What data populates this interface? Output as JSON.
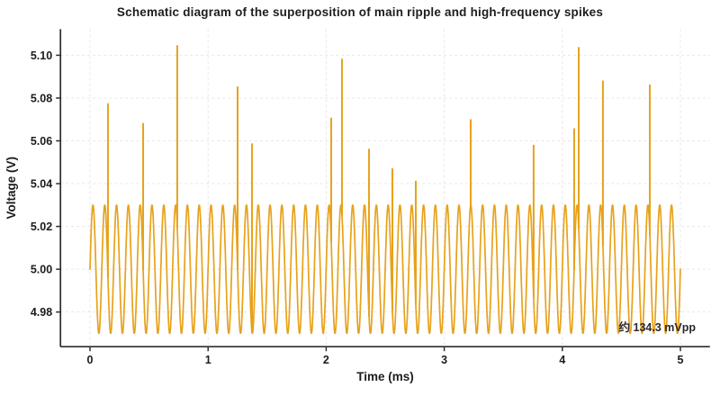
{
  "chart_data": {
    "type": "line",
    "title": "Schematic diagram of the superposition of main ripple and high-frequency spikes",
    "xlabel": "Time (ms)",
    "ylabel": "Voltage (V)",
    "xlim": [
      -0.25,
      5.25
    ],
    "ylim": [
      4.9638,
      5.1122
    ],
    "x_ticks": [
      0,
      1,
      2,
      3,
      4,
      5
    ],
    "y_ticks": [
      5.1,
      5.08,
      5.06,
      5.04,
      5.02,
      5.0,
      4.98
    ],
    "grid": "dashed",
    "legend": "none",
    "ripple": {
      "offset_v": 5.0,
      "amplitude_v": 0.03,
      "period_ms": 0.1,
      "t_start_ms": 0,
      "t_end_ms": 5,
      "sample_step_ms": 0.002
    },
    "spikes": [
      {
        "t": 0.152,
        "v": 5.0772
      },
      {
        "t": 0.45,
        "v": 5.068
      },
      {
        "t": 0.739,
        "v": 5.1043
      },
      {
        "t": 1.25,
        "v": 5.0851
      },
      {
        "t": 1.372,
        "v": 5.0585
      },
      {
        "t": 2.043,
        "v": 5.0705
      },
      {
        "t": 2.134,
        "v": 5.098
      },
      {
        "t": 2.363,
        "v": 5.056
      },
      {
        "t": 2.561,
        "v": 5.0468
      },
      {
        "t": 2.759,
        "v": 5.041
      },
      {
        "t": 3.224,
        "v": 5.0698
      },
      {
        "t": 3.757,
        "v": 5.0578
      },
      {
        "t": 4.1,
        "v": 5.0655
      },
      {
        "t": 4.139,
        "v": 5.1035
      },
      {
        "t": 4.344,
        "v": 5.0878
      },
      {
        "t": 4.741,
        "v": 5.086
      }
    ],
    "annotation": {
      "text": "约 134.3 mVpp",
      "anchor": "bottom-right"
    },
    "colors": {
      "line": "#E7A21B",
      "grid": "#E7E7E7",
      "axis": "#2E2E2E",
      "text": "#1C1C1C",
      "annotation_text": "#2A2A2A"
    }
  }
}
